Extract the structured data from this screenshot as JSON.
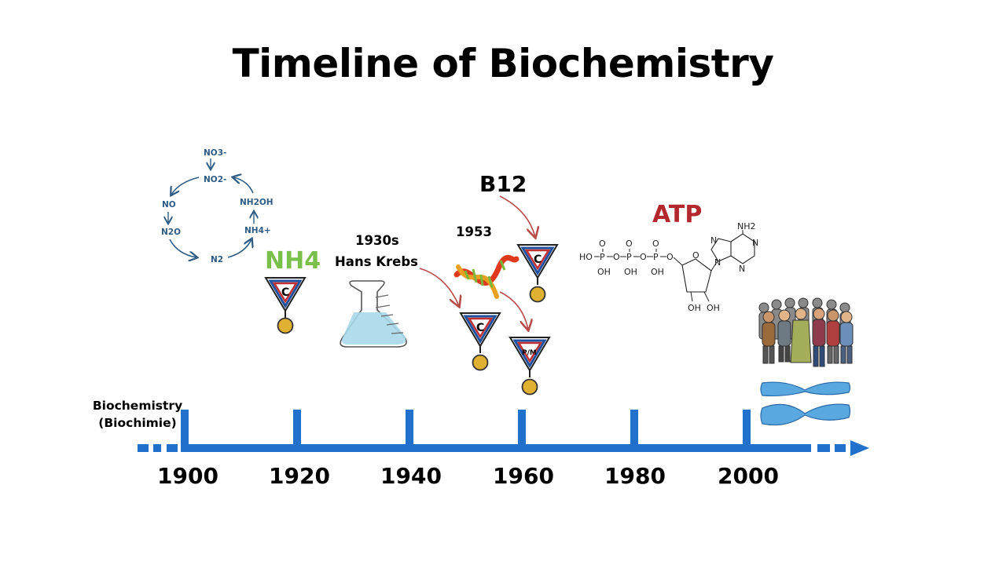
{
  "title": "Timeline of Biochemistry",
  "origin_label": [
    "Biochemistry",
    "(Biochimie)"
  ],
  "years": [
    "1900",
    "1920",
    "1940",
    "1960",
    "1980",
    "2000"
  ],
  "nitrogen_cycle": {
    "no3": "NO3-",
    "no2": "NO2-",
    "no": "NO",
    "n2o": "N2O",
    "n2": "N2",
    "nh2oh": "NH2OH",
    "nh4": "NH4+"
  },
  "nh4_label": "NH4",
  "krebs_label": [
    "1930s",
    "Hans Krebs"
  ],
  "dna_year": "1953",
  "b12_label": "B12",
  "atp_label": "ATP",
  "medal_c": "C",
  "medal_pm": "P/M",
  "atp_structure": {
    "ho": "HO",
    "o": "O",
    "p": "P",
    "oh": "OH",
    "nh2": "NH2",
    "n": "N"
  },
  "colors": {
    "timeline": "#2070cc",
    "nh4_green": "#79c04a",
    "atp_red": "#b3282d",
    "arrow_red": "#b84a4a",
    "cycle_blue": "#2e5b84",
    "flask_liquid": "#a8d8ea",
    "chromosome": "#5aa8e0"
  }
}
